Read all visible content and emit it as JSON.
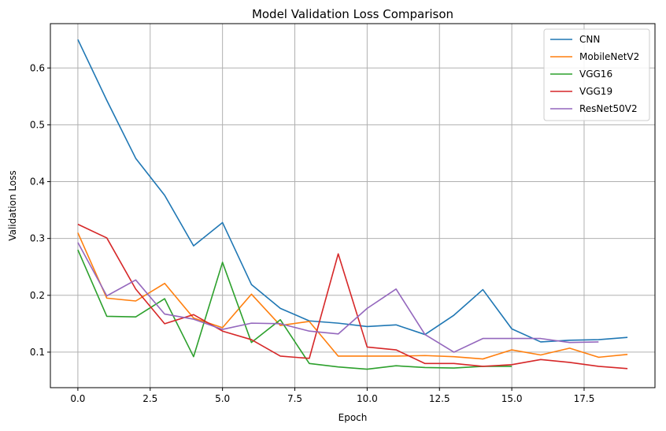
{
  "chart_data": {
    "type": "line",
    "title": "Model Validation Loss Comparison",
    "xlabel": "Epoch",
    "ylabel": "Validation Loss",
    "xlim": [
      -0.95,
      19.95
    ],
    "ylim": [
      0.0375,
      0.678
    ],
    "xticks": [
      0.0,
      2.5,
      5.0,
      7.5,
      10.0,
      12.5,
      15.0,
      17.5
    ],
    "xtick_labels": [
      "0.0",
      "2.5",
      "5.0",
      "7.5",
      "10.0",
      "12.5",
      "15.0",
      "17.5"
    ],
    "yticks": [
      0.1,
      0.2,
      0.3,
      0.4,
      0.5,
      0.6
    ],
    "ytick_labels": [
      "0.1",
      "0.2",
      "0.3",
      "0.4",
      "0.5",
      "0.6"
    ],
    "grid": true,
    "legend_position": "top-right",
    "series": [
      {
        "name": "CNN",
        "color": "#1f77b4",
        "x": [
          0,
          1,
          2,
          3,
          4,
          5,
          6,
          7,
          8,
          9,
          10,
          11,
          12,
          13,
          14,
          15,
          16,
          17,
          18,
          19
        ],
        "values": [
          0.65,
          0.543,
          0.441,
          0.376,
          0.287,
          0.328,
          0.219,
          0.177,
          0.155,
          0.151,
          0.145,
          0.148,
          0.131,
          0.165,
          0.21,
          0.141,
          0.118,
          0.121,
          0.122,
          0.126
        ]
      },
      {
        "name": "MobileNetV2",
        "color": "#ff7f0e",
        "x": [
          0,
          1,
          2,
          3,
          4,
          5,
          6,
          7,
          8,
          9,
          10,
          11,
          12,
          13,
          14,
          15,
          16,
          17,
          18,
          19
        ],
        "values": [
          0.31,
          0.195,
          0.19,
          0.221,
          0.16,
          0.143,
          0.202,
          0.147,
          0.154,
          0.093,
          0.093,
          0.093,
          0.094,
          0.092,
          0.088,
          0.104,
          0.095,
          0.107,
          0.091,
          0.096
        ]
      },
      {
        "name": "VGG16",
        "color": "#2ca02c",
        "x": [
          0,
          1,
          2,
          3,
          4,
          5,
          6,
          7,
          8,
          9,
          10,
          11,
          12,
          13,
          14,
          15
        ],
        "values": [
          0.28,
          0.163,
          0.162,
          0.194,
          0.092,
          0.258,
          0.117,
          0.157,
          0.08,
          0.074,
          0.07,
          0.076,
          0.073,
          0.072,
          0.075,
          0.075
        ]
      },
      {
        "name": "VGG19",
        "color": "#d62728",
        "x": [
          0,
          1,
          2,
          3,
          4,
          5,
          6,
          7,
          8,
          9,
          10,
          11,
          12,
          13,
          14,
          15,
          16,
          17,
          18,
          19
        ],
        "values": [
          0.325,
          0.301,
          0.211,
          0.15,
          0.166,
          0.137,
          0.122,
          0.093,
          0.089,
          0.273,
          0.109,
          0.104,
          0.08,
          0.08,
          0.075,
          0.078,
          0.087,
          0.082,
          0.075,
          0.071
        ]
      },
      {
        "name": "ResNet50V2",
        "color": "#9467bd",
        "x": [
          0,
          1,
          2,
          3,
          4,
          5,
          6,
          7,
          8,
          9,
          10,
          11,
          12,
          13,
          14,
          15,
          16,
          17,
          18
        ],
        "values": [
          0.293,
          0.199,
          0.227,
          0.167,
          0.158,
          0.14,
          0.151,
          0.15,
          0.137,
          0.132,
          0.177,
          0.211,
          0.131,
          0.1,
          0.124,
          0.124,
          0.124,
          0.117,
          0.118
        ]
      }
    ]
  }
}
